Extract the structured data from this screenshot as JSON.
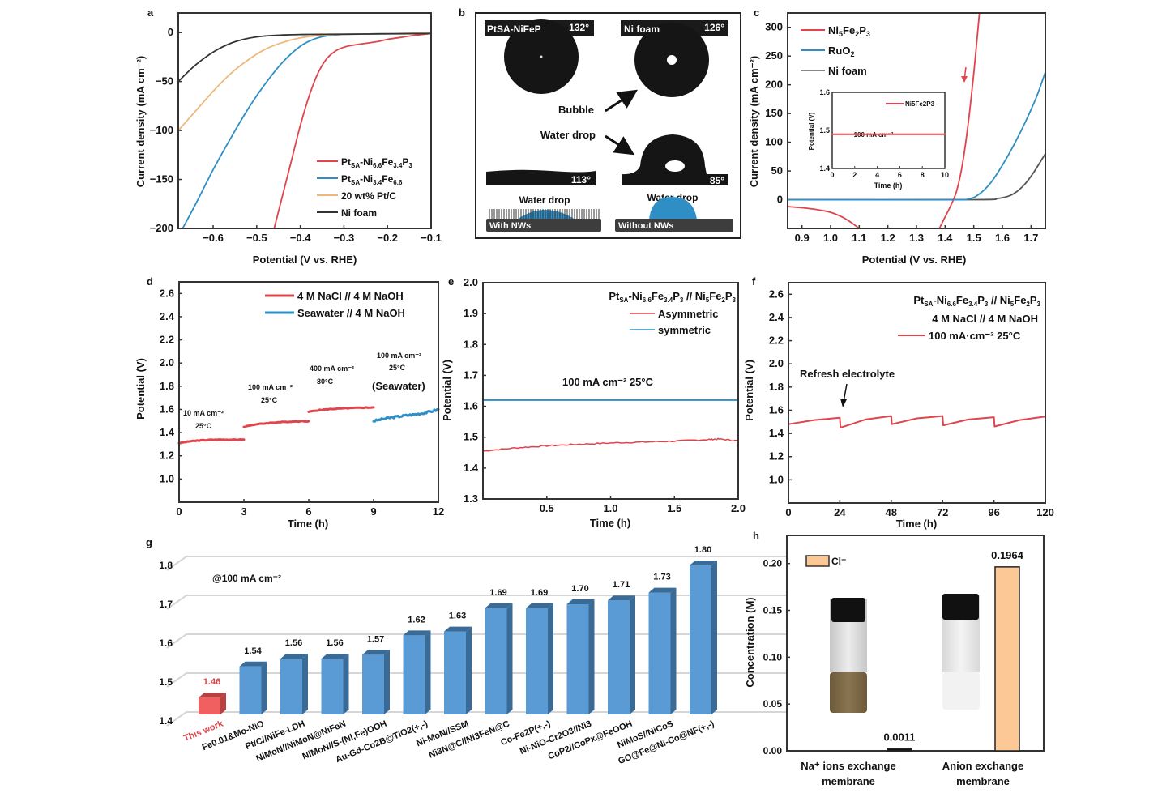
{
  "colors": {
    "red": "#e0444c",
    "blue": "#2f8fc4",
    "tan": "#f0b77a",
    "gray": "#333333",
    "bar_blue": "#5b9bd5",
    "bar_blue_dark": "#3a6b97",
    "bar_red": "#f06060",
    "bar_red_dark": "#b84040",
    "peach": "#fcc896"
  },
  "panels": {
    "a": {
      "label": "a"
    },
    "b": {
      "label": "b",
      "tl_title": "PtSA-NiFeP",
      "tl_angle": "132°",
      "tr_title": "Ni foam",
      "tr_angle": "126°",
      "bl_angle": "113°",
      "br_angle": "85°",
      "bubble": "Bubble",
      "water_drop": "Water drop",
      "water_drop_left": "Water drop",
      "water_drop_right": "Water drop",
      "with_nws": "With NWs",
      "without_nws": "Without NWs"
    },
    "c": {
      "label": "c"
    },
    "d": {
      "label": "d"
    },
    "e": {
      "label": "e"
    },
    "f": {
      "label": "f"
    },
    "g": {
      "label": "g"
    },
    "h": {
      "label": "h"
    }
  },
  "chart_data": [
    {
      "id": "a",
      "type": "line",
      "title": "",
      "xlabel": "Potential (V vs. RHE)",
      "ylabel": "Current density (mA cm⁻²)",
      "xlim": [
        -0.68,
        -0.1
      ],
      "ylim": [
        -200,
        20
      ],
      "xticks": [
        -0.6,
        -0.5,
        -0.4,
        -0.3,
        -0.2,
        -0.1
      ],
      "xtick_labels": [
        "−0.6",
        "−0.5",
        "−0.4",
        "−0.3",
        "−0.2",
        "−0.1"
      ],
      "yticks": [
        0,
        -50,
        -100,
        -150,
        -200
      ],
      "ytick_labels": [
        "0",
        "−50",
        "−100",
        "−150",
        "−200"
      ],
      "legend_position": "bottom-right",
      "series": [
        {
          "name": "PtSA-Ni6.6Fe3.4P3",
          "legend_main": "Pt",
          "legend_sub1": "SA",
          "legend_mid": "-Ni",
          "legend_sub2": "6.6",
          "legend_mid2": "Fe",
          "legend_sub3": "3.4",
          "legend_mid3": "P",
          "legend_sub4": "3",
          "color": "red",
          "x": [
            -0.46,
            -0.44,
            -0.42,
            -0.4,
            -0.38,
            -0.36,
            -0.34,
            -0.32,
            -0.3,
            -0.28,
            -0.25,
            -0.22,
            -0.2,
            -0.17,
            -0.14,
            -0.12,
            -0.1
          ],
          "y": [
            -200,
            -165,
            -130,
            -95,
            -65,
            -42,
            -27,
            -19,
            -15,
            -13,
            -11,
            -9,
            -7,
            -5,
            -3,
            -2,
            -1
          ]
        },
        {
          "name": "PtSA-Ni3.4Fe6.6",
          "legend_main": "Pt",
          "legend_sub1": "SA",
          "legend_mid": "-Ni",
          "legend_sub2": "3.4",
          "legend_mid2": "Fe",
          "legend_sub3": "6.6",
          "legend_mid3": "",
          "legend_sub4": "",
          "color": "blue",
          "x": [
            -0.67,
            -0.64,
            -0.6,
            -0.56,
            -0.52,
            -0.48,
            -0.44,
            -0.4,
            -0.37,
            -0.34,
            -0.3,
            -0.25,
            -0.2,
            -0.1
          ],
          "y": [
            -200,
            -175,
            -140,
            -108,
            -78,
            -52,
            -30,
            -14,
            -7,
            -3.5,
            -2,
            -1.5,
            -1,
            -0.5
          ]
        },
        {
          "name": "20 wt% Pt/C",
          "color": "tan",
          "x": [
            -0.68,
            -0.64,
            -0.6,
            -0.56,
            -0.52,
            -0.48,
            -0.44,
            -0.4,
            -0.36,
            -0.32,
            -0.25,
            -0.18,
            -0.1
          ],
          "y": [
            -100,
            -80,
            -60,
            -42,
            -28,
            -17,
            -10,
            -5.5,
            -3,
            -2,
            -1.5,
            -1,
            -0.5
          ]
        },
        {
          "name": "Ni foam",
          "color": "gray",
          "x": [
            -0.68,
            -0.64,
            -0.6,
            -0.56,
            -0.52,
            -0.48,
            -0.44,
            -0.4,
            -0.35,
            -0.25,
            -0.1
          ],
          "y": [
            -50,
            -33,
            -20,
            -11,
            -6,
            -3.5,
            -2.5,
            -2,
            -1.8,
            -1.5,
            -1
          ]
        }
      ]
    },
    {
      "id": "c",
      "type": "line",
      "xlabel": "Potential (V vs. RHE)",
      "ylabel": "Current density (mA cm⁻²)",
      "xlim": [
        0.85,
        1.75
      ],
      "ylim": [
        -50,
        325
      ],
      "xticks": [
        0.9,
        1.0,
        1.1,
        1.2,
        1.3,
        1.4,
        1.5,
        1.6,
        1.7
      ],
      "xtick_labels": [
        "0.9",
        "1.0",
        "1.1",
        "1.2",
        "1.3",
        "1.4",
        "1.5",
        "1.6",
        "1.7"
      ],
      "yticks": [
        0,
        50,
        100,
        150,
        200,
        250,
        300
      ],
      "ytick_labels": [
        "0",
        "50",
        "100",
        "150",
        "200",
        "250",
        "300"
      ],
      "legend_position": "top-left",
      "series": [
        {
          "name": "Ni5Fe2P3",
          "legend_main": "Ni",
          "legend_sub1": "5",
          "legend_mid": "Fe",
          "legend_sub2": "2",
          "legend_mid2": "P",
          "legend_sub3": "3",
          "color": "red",
          "segments": [
            {
              "x": [
                0.85,
                0.9,
                0.95,
                1.0,
                1.04,
                1.07,
                1.1
              ],
              "y": [
                -12,
                -14,
                -17,
                -22,
                -30,
                -39,
                -50
              ]
            },
            {
              "x": [
                1.38,
                1.4,
                1.42,
                1.44,
                1.46,
                1.48,
                1.5,
                1.52
              ],
              "y": [
                -50,
                -30,
                -10,
                15,
                60,
                130,
                220,
                325
              ]
            }
          ]
        },
        {
          "name": "RuO2",
          "legend_main": "RuO",
          "legend_sub1": "2",
          "color": "blue",
          "x": [
            0.85,
            1.4,
            1.48,
            1.52,
            1.56,
            1.6,
            1.64,
            1.68,
            1.72,
            1.75
          ],
          "y": [
            0,
            0,
            1,
            10,
            30,
            60,
            95,
            135,
            180,
            222
          ]
        },
        {
          "name": "Ni foam",
          "color": "gray",
          "x": [
            0.85,
            1.5,
            1.58,
            1.62,
            1.65,
            1.68,
            1.71,
            1.75
          ],
          "y": [
            0,
            0,
            2,
            6,
            14,
            28,
            48,
            80
          ]
        }
      ],
      "annotation": "red downward arrow near 1.47 V",
      "inset": {
        "xlabel": "Time (h)",
        "ylabel": "Potential (V)",
        "xlim": [
          0,
          10
        ],
        "ylim": [
          1.4,
          1.6
        ],
        "xticks": [
          0,
          2,
          4,
          6,
          8,
          10
        ],
        "yticks": [
          1.4,
          1.5,
          1.6
        ],
        "ytick_labels": [
          "1.4",
          "1.5",
          "1.6"
        ],
        "legend": "Ni5Fe2P3",
        "annotation": "100 mA cm⁻²",
        "series": [
          {
            "name": "Ni5Fe2P3",
            "color": "red",
            "x": [
              0,
              10
            ],
            "y": [
              1.49,
              1.49
            ]
          }
        ]
      }
    },
    {
      "id": "d",
      "type": "line",
      "xlabel": "Time (h)",
      "ylabel": "Potential (V)",
      "xlim": [
        0,
        12
      ],
      "ylim": [
        0.8,
        2.7
      ],
      "xticks": [
        0,
        3,
        6,
        9,
        12
      ],
      "yticks": [
        1.0,
        1.2,
        1.4,
        1.6,
        1.8,
        2.0,
        2.2,
        2.4,
        2.6
      ],
      "ytick_labels": [
        "1.0",
        "1.2",
        "1.4",
        "1.6",
        "1.8",
        "2.0",
        "2.2",
        "2.4",
        "2.6"
      ],
      "legend_position": "top-right",
      "series": [
        {
          "name": "4 M NaCl // 4 M NaOH",
          "color": "red",
          "segments": [
            {
              "x": [
                0,
                0.5,
                1,
                1.5,
                2,
                2.5,
                3
              ],
              "y": [
                1.31,
                1.325,
                1.333,
                1.338,
                1.34,
                1.338,
                1.34
              ]
            },
            {
              "x": [
                3,
                3.5,
                4,
                4.5,
                5,
                5.5,
                6
              ],
              "y": [
                1.45,
                1.47,
                1.48,
                1.488,
                1.493,
                1.497,
                1.498
              ]
            },
            {
              "x": [
                6,
                6.5,
                7,
                7.5,
                8,
                8.5,
                9
              ],
              "y": [
                1.58,
                1.595,
                1.603,
                1.608,
                1.612,
                1.615,
                1.618
              ]
            }
          ]
        },
        {
          "name": "Seawater // 4 M NaOH",
          "color": "blue",
          "segments": [
            {
              "x": [
                9,
                9.5,
                10,
                10.5,
                11,
                11.5,
                12
              ],
              "y": [
                1.5,
                1.52,
                1.535,
                1.548,
                1.56,
                1.575,
                1.6
              ]
            }
          ]
        }
      ],
      "annotations": [
        {
          "line1": "10 mA cm⁻²",
          "line2": "25°C"
        },
        {
          "line1": "100 mA cm⁻²",
          "line2": "25°C"
        },
        {
          "line1": "400 mA cm⁻²",
          "line2": "80°C"
        },
        {
          "line1": "100 mA cm⁻²",
          "line2": "25°C",
          "line3": "(Seawater)"
        }
      ]
    },
    {
      "id": "e",
      "type": "line",
      "xlabel": "Time (h)",
      "ylabel": "Potential (V)",
      "xlim": [
        0,
        2.0
      ],
      "ylim": [
        1.3,
        2.0
      ],
      "xticks": [
        0.5,
        1.0,
        1.5,
        2.0
      ],
      "xtick_labels": [
        "0.5",
        "1.0",
        "1.5",
        "2.0"
      ],
      "yticks": [
        1.3,
        1.4,
        1.5,
        1.6,
        1.7,
        1.8,
        1.9,
        2.0
      ],
      "ytick_labels": [
        "1.3",
        "1.4",
        "1.5",
        "1.6",
        "1.7",
        "1.8",
        "1.9",
        "2.0"
      ],
      "legend_title": "PtSA-Ni6.6Fe3.4P3 // Ni5Fe2P3",
      "annotation": "100 mA cm⁻²  25°C",
      "legend_position": "top-right",
      "series": [
        {
          "name": "Asymmetric",
          "color": "red",
          "x": [
            0,
            0.25,
            0.5,
            0.75,
            1.0,
            1.25,
            1.5,
            1.75,
            1.85,
            2.0
          ],
          "y": [
            1.455,
            1.465,
            1.472,
            1.477,
            1.481,
            1.484,
            1.487,
            1.492,
            1.494,
            1.488
          ]
        },
        {
          "name": "symmetric",
          "color": "blue",
          "x": [
            0,
            2.0
          ],
          "y": [
            1.62,
            1.62
          ]
        }
      ]
    },
    {
      "id": "f",
      "type": "line",
      "xlabel": "Time (h)",
      "ylabel": "Potential (V)",
      "xlim": [
        0,
        120
      ],
      "ylim": [
        0.8,
        2.7
      ],
      "xticks": [
        0,
        24,
        48,
        72,
        96,
        120
      ],
      "yticks": [
        1.0,
        1.2,
        1.4,
        1.6,
        1.8,
        2.0,
        2.2,
        2.4,
        2.6
      ],
      "ytick_labels": [
        "1.0",
        "1.2",
        "1.4",
        "1.6",
        "1.8",
        "2.0",
        "2.2",
        "2.4",
        "2.6"
      ],
      "legend_title": "PtSA-Ni6.6Fe3.4P3 // Ni5Fe2P3",
      "legend_subtitle": "4 M NaCl // 4 M NaOH",
      "annotation": "Refresh electrolyte",
      "legend_position": "top-right",
      "series": [
        {
          "name": "100 mA·cm⁻²  25°C",
          "color": "red",
          "x": [
            0,
            12,
            24,
            24.3,
            36,
            48,
            48.3,
            60,
            72,
            72.3,
            84,
            96,
            96.3,
            108,
            120
          ],
          "y": [
            1.48,
            1.515,
            1.535,
            1.45,
            1.52,
            1.55,
            1.48,
            1.53,
            1.55,
            1.47,
            1.52,
            1.54,
            1.46,
            1.515,
            1.545
          ]
        }
      ]
    },
    {
      "id": "g",
      "type": "bar",
      "title": "@100 mA cm⁻²",
      "ylim": [
        1.4,
        1.8
      ],
      "yticks": [
        1.4,
        1.5,
        1.6,
        1.7,
        1.8
      ],
      "ytick_labels": [
        "1.4",
        "1.5",
        "1.6",
        "1.7",
        "1.8"
      ],
      "categories": [
        "This work",
        "Fe0.01&Mo-NiO",
        "Pt/C//NiFe-LDH",
        "NiMoN//NiMoN@NiFeN",
        "NiMoN//S-(Ni,Fe)OOH",
        "Au-Gd-Co2B@TiO2(+,-)",
        "Ni-MoN//SSM",
        "Ni3N@C//Ni3FeN@C",
        "Co-Fe2P(+,-)",
        "Ni-NiO-Cr2O3//Ni3",
        "CoP2//CoPx@FeOOH",
        "NiMoS//NiCoS",
        "GO@Fe@Ni-Co@NF(+,-)"
      ],
      "values": [
        1.46,
        1.54,
        1.56,
        1.56,
        1.57,
        1.62,
        1.63,
        1.69,
        1.69,
        1.7,
        1.71,
        1.73,
        1.8
      ],
      "value_labels": [
        "1.46",
        "1.54",
        "1.56",
        "1.56",
        "1.57",
        "1.62",
        "1.63",
        "1.69",
        "1.69",
        "1.70",
        "1.71",
        "1.73",
        "1.80"
      ],
      "highlight_index": 0
    },
    {
      "id": "h",
      "type": "bar",
      "ylabel": "Concentration (M)",
      "ylim": [
        0,
        0.23
      ],
      "yticks": [
        0.0,
        0.05,
        0.1,
        0.15,
        0.2
      ],
      "ytick_labels": [
        "0.00",
        "0.05",
        "0.10",
        "0.15",
        "0.20"
      ],
      "legend": [
        "Cl⁻"
      ],
      "legend_position": "top-left",
      "categories": [
        "Na⁺ ions exchange membrane",
        "Anion exchange membrane"
      ],
      "category_line1": [
        "Na⁺ ions exchange",
        "Anion exchange"
      ],
      "category_line2": [
        "membrane",
        "membrane"
      ],
      "values": [
        0.0011,
        0.1964
      ],
      "value_labels": [
        "0.0011",
        "0.1964"
      ]
    }
  ]
}
